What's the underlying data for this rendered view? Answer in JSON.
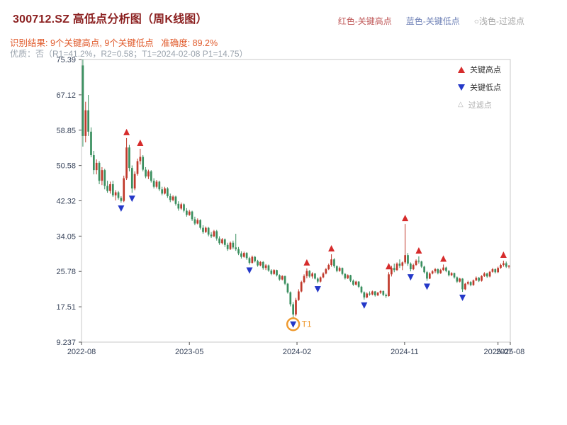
{
  "page": {
    "title": "300712.SZ 高低点分析图（周K线图）",
    "result_line": "识别结果: 9个关键高点, 9个关键低点   准确度: 89.2%",
    "quality_line": "优质：否（R1=41.2%，R2=0.58；T1=2024-02-08 P1=14.75）",
    "colors": {
      "title": "#8b1f1f",
      "result_line": "#e05a2b",
      "quality_line": "#9aa3ad"
    },
    "header_legend": [
      {
        "label": "红色-关键高点",
        "color": "#c05a5a"
      },
      {
        "label": "蓝色-关键低点",
        "color": "#7284b8"
      },
      {
        "label": "○浅色-过滤点",
        "color": "#a8a8a8"
      }
    ]
  },
  "chart_data": {
    "type": "candlestick",
    "symbol": "300712.SZ",
    "period": "weekly",
    "title": "300712.SZ 高低点分析图（周K线图）",
    "ylim": [
      9.237,
      75.39
    ],
    "y_ticks": [
      75.39,
      67.12,
      58.85,
      50.58,
      42.32,
      34.05,
      25.78,
      17.51,
      9.237
    ],
    "x_ticks": [
      {
        "label": "2022-08",
        "week": 0
      },
      {
        "label": "2023-05",
        "week": 39.5
      },
      {
        "label": "2024-02",
        "week": 78.9
      },
      {
        "label": "2024-11",
        "week": 118.3
      },
      {
        "label": "2025-07",
        "week": 152.5
      },
      {
        "label": "2025-08",
        "week": 157
      }
    ],
    "up_color": "#c0392b",
    "down_color": "#3a8f5f",
    "high_marker_color": "#d62b2b",
    "low_marker_color": "#2438c8",
    "axis_text_color": "#37435a",
    "legend": [
      {
        "label": "关键高点",
        "marker": "up-triangle",
        "color": "#d62b2b"
      },
      {
        "label": "关键低点",
        "marker": "down-triangle",
        "color": "#2438c8"
      },
      {
        "label": "过滤点",
        "marker": "outline-triangle",
        "color": "#b5b5b5"
      }
    ],
    "t1": {
      "week": 77,
      "price": 14.75,
      "label": "T1",
      "color": "#ef9a2f"
    },
    "key_highs": [
      {
        "week": 16,
        "price": 57.0
      },
      {
        "week": 21,
        "price": 54.5
      },
      {
        "week": 82,
        "price": 26.5
      },
      {
        "week": 91,
        "price": 29.8
      },
      {
        "week": 112,
        "price": 25.6
      },
      {
        "week": 118,
        "price": 36.9
      },
      {
        "week": 123,
        "price": 29.3
      },
      {
        "week": 132,
        "price": 27.4
      },
      {
        "week": 154,
        "price": 28.3
      }
    ],
    "key_lows": [
      {
        "week": 14,
        "price": 41.9
      },
      {
        "week": 18,
        "price": 44.2
      },
      {
        "week": 61,
        "price": 27.4
      },
      {
        "week": 77,
        "price": 14.75
      },
      {
        "week": 86,
        "price": 23.0
      },
      {
        "week": 103,
        "price": 19.2
      },
      {
        "week": 120,
        "price": 25.8
      },
      {
        "week": 126,
        "price": 23.6
      },
      {
        "week": 139,
        "price": 21.0
      }
    ],
    "candles": [
      [
        74,
        75.39,
        55,
        57.5
      ],
      [
        57.5,
        65.5,
        56,
        63.5
      ],
      [
        63.5,
        67.1,
        57.5,
        58.5
      ],
      [
        58.5,
        59.5,
        52.5,
        53
      ],
      [
        53,
        54,
        48.5,
        49.5
      ],
      [
        49.5,
        52,
        48.5,
        51.2
      ],
      [
        51.2,
        51.6,
        46.2,
        47
      ],
      [
        47,
        50.2,
        46,
        49.5
      ],
      [
        49.5,
        49.8,
        45,
        45.8
      ],
      [
        45.8,
        47,
        44.2,
        44.6
      ],
      [
        44.6,
        46.8,
        44,
        46.2
      ],
      [
        46.2,
        47,
        43.2,
        43.6
      ],
      [
        43.6,
        44.8,
        42.4,
        44.3
      ],
      [
        44.3,
        44.6,
        42.6,
        43
      ],
      [
        43,
        43.4,
        41.9,
        42.3
      ],
      [
        42.3,
        48.2,
        42,
        47.6
      ],
      [
        47.6,
        57,
        47.2,
        54.8
      ],
      [
        54.8,
        55.4,
        49.2,
        50
      ],
      [
        50,
        50.6,
        44.2,
        45.2
      ],
      [
        45.2,
        49.2,
        44.8,
        48.6
      ],
      [
        48.6,
        52.2,
        48.2,
        51.6
      ],
      [
        51.6,
        54.5,
        50.8,
        52.6
      ],
      [
        52.6,
        53,
        49.2,
        49.6
      ],
      [
        49.6,
        50.2,
        47.6,
        48
      ],
      [
        48,
        49.6,
        47.4,
        49.2
      ],
      [
        49.2,
        49.5,
        46.6,
        47
      ],
      [
        47,
        47.6,
        45.2,
        45.6
      ],
      [
        45.6,
        47.2,
        45.2,
        46.8
      ],
      [
        46.8,
        47,
        44.6,
        45
      ],
      [
        45,
        45.6,
        43.6,
        44
      ],
      [
        44,
        45.6,
        43.8,
        45.2
      ],
      [
        45.2,
        45.5,
        43,
        43.4
      ],
      [
        43.4,
        44,
        42,
        42.5
      ],
      [
        42.5,
        43.6,
        42.2,
        43.3
      ],
      [
        43.3,
        43.5,
        41.2,
        41.6
      ],
      [
        41.6,
        42.2,
        40,
        40.5
      ],
      [
        40.5,
        41.9,
        40.2,
        41.5
      ],
      [
        41.5,
        41.7,
        39.6,
        40
      ],
      [
        40,
        40.6,
        38.6,
        39
      ],
      [
        39,
        40.2,
        38.8,
        39.8
      ],
      [
        39.8,
        40,
        37.6,
        38
      ],
      [
        38,
        38.6,
        36.6,
        37
      ],
      [
        37,
        38.2,
        36.8,
        37.8
      ],
      [
        37.8,
        38,
        35.6,
        36
      ],
      [
        36,
        36.6,
        34.6,
        35
      ],
      [
        35,
        36.3,
        34.8,
        36
      ],
      [
        36,
        36.2,
        34,
        34.4
      ],
      [
        34.4,
        35,
        33.6,
        34
      ],
      [
        34,
        35.5,
        33.8,
        35.2
      ],
      [
        35.2,
        35.5,
        33,
        33.5
      ],
      [
        33.5,
        34,
        32,
        32.4
      ],
      [
        32.4,
        33.6,
        32.1,
        33.3
      ],
      [
        33.3,
        33.5,
        31.5,
        32
      ],
      [
        32,
        32.5,
        30.6,
        31
      ],
      [
        31,
        32.8,
        30.8,
        32.5
      ],
      [
        32.5,
        33,
        31,
        31.4
      ],
      [
        31.4,
        34.6,
        30.6,
        31
      ],
      [
        31,
        31.5,
        29.6,
        30
      ],
      [
        30,
        30.5,
        28.8,
        29.2
      ],
      [
        29.2,
        30.4,
        29,
        30.1
      ],
      [
        30.1,
        30.3,
        28.5,
        28.9
      ],
      [
        28.9,
        29.2,
        27.4,
        27.8
      ],
      [
        27.8,
        29.5,
        27.6,
        29.2
      ],
      [
        29.2,
        29.4,
        27.9,
        28.2
      ],
      [
        28.2,
        28.5,
        26.9,
        27.2
      ],
      [
        27.2,
        28.2,
        27,
        28
      ],
      [
        28,
        28.2,
        26.2,
        26.6
      ],
      [
        26.6,
        27.5,
        26.1,
        27.2
      ],
      [
        27.2,
        27.4,
        25.7,
        26
      ],
      [
        26,
        26.3,
        24.9,
        25.2
      ],
      [
        25.2,
        26.3,
        25,
        26.1
      ],
      [
        26.1,
        26.2,
        24.6,
        24.9
      ],
      [
        24.9,
        25.1,
        23.6,
        23.9
      ],
      [
        23.9,
        24.9,
        23.7,
        24.7
      ],
      [
        24.7,
        24.8,
        22.6,
        22.9
      ],
      [
        22.9,
        23.1,
        20.6,
        20.9
      ],
      [
        20.9,
        21.1,
        17.6,
        18.1
      ],
      [
        18.1,
        18.6,
        14.75,
        15.7
      ],
      [
        15.7,
        19.6,
        15.3,
        19.1
      ],
      [
        19.1,
        21.6,
        18.9,
        21.1
      ],
      [
        21.1,
        23.6,
        20.9,
        23.3
      ],
      [
        23.3,
        25.1,
        23,
        24.7
      ],
      [
        24.7,
        26.5,
        24.2,
        25.9
      ],
      [
        25.9,
        26.1,
        24.3,
        24.6
      ],
      [
        24.6,
        25.6,
        24.1,
        25.3
      ],
      [
        25.3,
        25.4,
        23.9,
        24.1
      ],
      [
        24.1,
        24.4,
        23,
        23.4
      ],
      [
        23.4,
        24.6,
        23.2,
        24.4
      ],
      [
        24.4,
        25.6,
        24.2,
        25.3
      ],
      [
        25.3,
        26.6,
        25.1,
        26.3
      ],
      [
        26.3,
        27.6,
        26.1,
        27.3
      ],
      [
        27.3,
        29.8,
        26.9,
        28.6
      ],
      [
        28.6,
        28.9,
        26.6,
        27
      ],
      [
        27,
        27.2,
        25.6,
        25.9
      ],
      [
        25.9,
        26.9,
        25.7,
        26.6
      ],
      [
        26.6,
        26.7,
        24.9,
        25.2
      ],
      [
        25.2,
        25.4,
        23.9,
        24.2
      ],
      [
        24.2,
        25.1,
        24,
        24.9
      ],
      [
        24.9,
        25,
        23.3,
        23.6
      ],
      [
        23.6,
        23.9,
        22.4,
        22.7
      ],
      [
        22.7,
        23.6,
        22.5,
        23.4
      ],
      [
        23.4,
        23.5,
        21.9,
        22.2
      ],
      [
        22.2,
        22.4,
        20.6,
        20.9
      ],
      [
        20.9,
        21.1,
        19.2,
        19.7
      ],
      [
        19.7,
        20.9,
        19.5,
        20.6
      ],
      [
        20.6,
        21.1,
        20.1,
        20.4
      ],
      [
        20.4,
        21.3,
        20.2,
        21.1
      ],
      [
        21.1,
        21.2,
        19.9,
        20.2
      ],
      [
        20.2,
        21,
        20,
        20.8
      ],
      [
        20.8,
        21.4,
        20.5,
        21.2
      ],
      [
        21.2,
        21.3,
        20,
        20.3
      ],
      [
        20.3,
        20.6,
        19.6,
        20
      ],
      [
        20,
        25.6,
        19.9,
        25.1
      ],
      [
        25.1,
        27.1,
        24.6,
        26.6
      ],
      [
        26.6,
        27.6,
        25.6,
        26.1
      ],
      [
        26.1,
        27.9,
        25.9,
        27.6
      ],
      [
        27.6,
        28.6,
        26.6,
        27.1
      ],
      [
        27.1,
        28.1,
        26.1,
        27.9
      ],
      [
        27.9,
        36.9,
        27.5,
        29.6
      ],
      [
        29.6,
        30.1,
        27.1,
        27.6
      ],
      [
        27.6,
        27.9,
        25.8,
        26.3
      ],
      [
        26.3,
        27.6,
        26.1,
        27.3
      ],
      [
        27.3,
        28.6,
        27.1,
        28.3
      ],
      [
        28.3,
        29.3,
        27.6,
        28.1
      ],
      [
        28.1,
        28.3,
        26.6,
        26.9
      ],
      [
        26.9,
        27.1,
        25.3,
        25.6
      ],
      [
        25.6,
        25.9,
        23.6,
        24.1
      ],
      [
        24.1,
        25.6,
        24,
        25.3
      ],
      [
        25.3,
        26.1,
        25.1,
        25.8
      ],
      [
        25.8,
        26.6,
        25.4,
        26.3
      ],
      [
        26.3,
        26.5,
        25.1,
        25.4
      ],
      [
        25.4,
        26.4,
        25.2,
        26.1
      ],
      [
        26.1,
        27.4,
        25.9,
        26.7
      ],
      [
        26.7,
        26.9,
        25.6,
        25.9
      ],
      [
        25.9,
        26.1,
        24.6,
        24.9
      ],
      [
        24.9,
        25.6,
        24.7,
        25.4
      ],
      [
        25.4,
        25.5,
        24.1,
        24.4
      ],
      [
        24.4,
        24.6,
        23.1,
        23.4
      ],
      [
        23.4,
        24.3,
        23.2,
        24.1
      ],
      [
        24.1,
        24.2,
        21,
        21.6
      ],
      [
        21.6,
        23.1,
        21.4,
        22.9
      ],
      [
        22.9,
        23.6,
        22.6,
        23.3
      ],
      [
        23.3,
        23.5,
        22.3,
        22.6
      ],
      [
        22.6,
        23.9,
        22.4,
        23.7
      ],
      [
        23.7,
        24.6,
        23.5,
        24.3
      ],
      [
        24.3,
        24.5,
        23.3,
        23.6
      ],
      [
        23.6,
        24.9,
        23.4,
        24.7
      ],
      [
        24.7,
        25.6,
        24.5,
        25.3
      ],
      [
        25.3,
        25.5,
        24.3,
        24.6
      ],
      [
        24.6,
        25.9,
        24.4,
        25.7
      ],
      [
        25.7,
        26.6,
        25.5,
        26.3
      ],
      [
        26.3,
        26.5,
        25.3,
        25.6
      ],
      [
        25.6,
        26.9,
        25.4,
        26.6
      ],
      [
        26.6,
        27.6,
        26.4,
        27.3
      ],
      [
        27.3,
        28.3,
        26.9,
        27.7
      ],
      [
        27.7,
        28.1,
        26.6,
        26.9
      ],
      [
        26.9,
        27.3,
        26.5,
        27.1
      ]
    ]
  }
}
